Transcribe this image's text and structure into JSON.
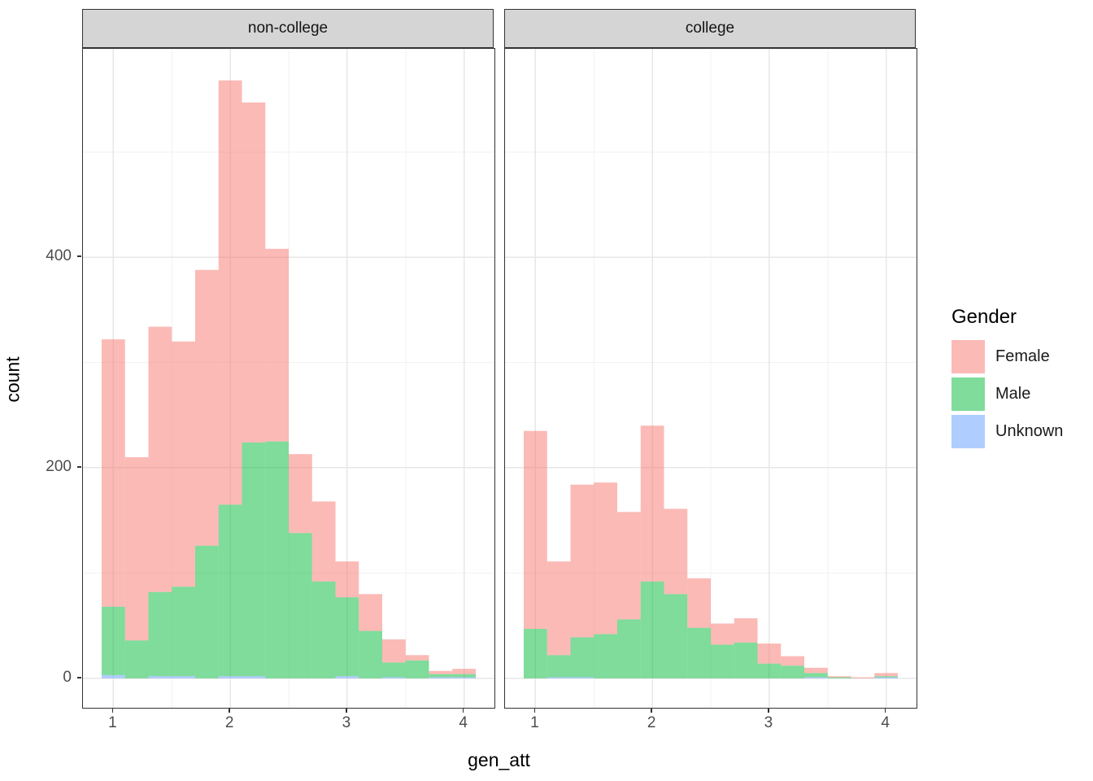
{
  "figure": {
    "xlabel": "gen_att",
    "ylabel": "count",
    "legend": {
      "title": "Gender",
      "entries": [
        {
          "label": "Female",
          "color": "rgba(248,118,109,0.5)"
        },
        {
          "label": "Male",
          "color": "rgba(0,186,56,0.5)"
        },
        {
          "label": "Unknown",
          "color": "rgba(97,156,255,0.5)"
        }
      ]
    }
  },
  "chart_data": {
    "type": "bar",
    "subtype": "stacked-histogram",
    "title": "",
    "xlabel": "gen_att",
    "ylabel": "count",
    "grid": true,
    "legend_position": "right",
    "legend_title": "Gender",
    "alpha": 0.5,
    "bin_start": 0.9,
    "bin_width": 0.2,
    "n_bins": 16,
    "bin_centers": [
      1.0,
      1.2,
      1.4,
      1.6,
      1.8,
      2.0,
      2.2,
      2.4,
      2.6,
      2.8,
      3.0,
      3.2,
      3.4,
      3.6,
      3.8,
      4.0
    ],
    "x_ticks": [
      "1",
      "2",
      "3",
      "4"
    ],
    "x_tick_values": [
      1,
      2,
      3,
      4
    ],
    "x_minor_ticks": [
      1.5,
      2.5,
      3.5
    ],
    "y_ticks": [
      "0",
      "200",
      "400"
    ],
    "y_tick_values": [
      0,
      200,
      400
    ],
    "y_minor_ticks": [
      100,
      300,
      500
    ],
    "xlim": [
      0.74,
      4.26
    ],
    "ylim": [
      -28,
      598
    ],
    "stack_order_bottom_to_top": [
      "Unknown",
      "Male",
      "Female"
    ],
    "colors": {
      "Female": "rgba(248,118,109,0.5)",
      "Male": "rgba(0,186,56,0.5)",
      "Unknown": "rgba(97,156,255,0.5)"
    },
    "grid_major_color": "#e7e7e7",
    "grid_minor_color": "#f2f2f2",
    "facets": [
      {
        "label": "non-college",
        "series": [
          {
            "name": "Unknown",
            "values": [
              3,
              0,
              2,
              2,
              0,
              2,
              2,
              0,
              0,
              0,
              2,
              0,
              1,
              0,
              1,
              1
            ]
          },
          {
            "name": "Male",
            "values": [
              65,
              36,
              80,
              85,
              126,
              163,
              222,
              225,
              138,
              92,
              75,
              45,
              14,
              17,
              3,
              3
            ]
          },
          {
            "name": "Female",
            "values": [
              254,
              174,
              252,
              233,
              262,
              403,
              323,
              183,
              75,
              76,
              34,
              35,
              22,
              5,
              3,
              5
            ]
          }
        ],
        "totals": [
          322,
          210,
          334,
          320,
          388,
          568,
          547,
          408,
          213,
          168,
          111,
          80,
          37,
          22,
          7,
          9
        ]
      },
      {
        "label": "college",
        "series": [
          {
            "name": "Unknown",
            "values": [
              0,
              1,
              1,
              0,
              0,
              0,
              0,
              0,
              0,
              0,
              0,
              0,
              1,
              0,
              0,
              1
            ]
          },
          {
            "name": "Male",
            "values": [
              47,
              21,
              38,
              42,
              56,
              92,
              80,
              48,
              32,
              34,
              14,
              12,
              4,
              1,
              0,
              1
            ]
          },
          {
            "name": "Female",
            "values": [
              188,
              89,
              145,
              144,
              102,
              148,
              81,
              47,
              20,
              23,
              19,
              9,
              5,
              1,
              1,
              3
            ]
          }
        ],
        "totals": [
          235,
          111,
          184,
          186,
          158,
          240,
          161,
          95,
          52,
          57,
          33,
          21,
          10,
          2,
          1,
          5
        ]
      }
    ]
  }
}
